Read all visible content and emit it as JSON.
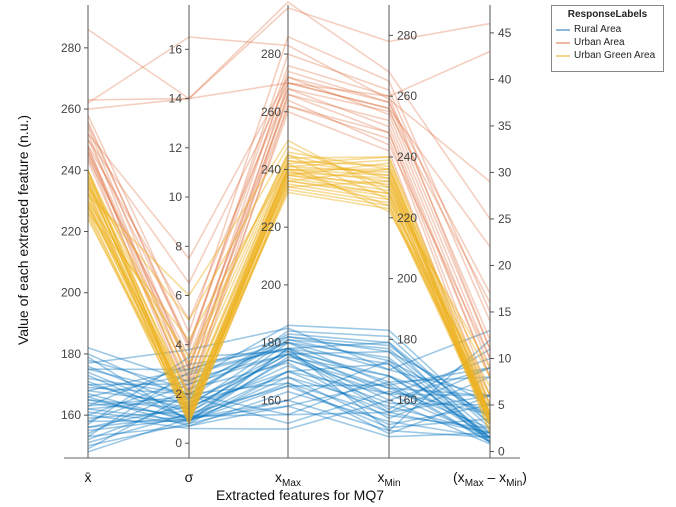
{
  "chart_data": {
    "type": "parallel-coordinates",
    "xlabel": "Extracted features for MQ7",
    "ylabel": "Value of each extracted feature (n.u.)",
    "axes": [
      {
        "id": "mean",
        "label": "x̄",
        "ticks": [
          160,
          180,
          200,
          220,
          240,
          260,
          280
        ],
        "range": [
          146,
          294
        ],
        "tick_side": "left"
      },
      {
        "id": "std",
        "label": "σ",
        "ticks": [
          0,
          2,
          4,
          6,
          8,
          10,
          12,
          14,
          16
        ],
        "range": [
          -0.6,
          17.8
        ],
        "tick_side": "left"
      },
      {
        "id": "xmax",
        "label": "x",
        "label_sub": "Max",
        "ticks": [
          160,
          180,
          200,
          220,
          240,
          260,
          280
        ],
        "range": [
          140,
          297
        ],
        "tick_side": "left"
      },
      {
        "id": "xmin",
        "label": "x",
        "label_sub": "Min",
        "ticks": [
          160,
          180,
          200,
          220,
          240,
          260,
          280
        ],
        "range": [
          141,
          290
        ],
        "tick_side": "right"
      },
      {
        "id": "range",
        "label": "(x",
        "label_sub": "Max",
        "label_mid": " – x",
        "label_sub2": "Min",
        "label_end": ")",
        "ticks": [
          0,
          5,
          10,
          15,
          20,
          25,
          30,
          35,
          40,
          45
        ],
        "range": [
          -0.7,
          48
        ],
        "tick_side": "right"
      }
    ],
    "legend": {
      "title": "ResponseLabels",
      "position": "top-right",
      "entries": [
        {
          "name": "Rural Area",
          "color": "#0072BD"
        },
        {
          "name": "Urban Area",
          "color": "#D95319"
        },
        {
          "name": "Urban Green Area",
          "color": "#EDB120"
        }
      ]
    },
    "series": [
      {
        "name": "Rural Area",
        "color": "#0072BD",
        "records": [
          [
            182,
            2.5,
            186,
            183,
            3
          ],
          [
            180,
            1.8,
            184,
            181,
            2.5
          ],
          [
            178,
            2.2,
            183,
            179,
            3
          ],
          [
            176,
            1.5,
            181,
            177,
            2
          ],
          [
            175,
            3.0,
            182,
            176,
            5
          ],
          [
            174,
            1.2,
            180,
            174,
            1.5
          ],
          [
            172,
            2.0,
            181,
            173,
            4
          ],
          [
            171,
            1.0,
            178,
            172,
            1.5
          ],
          [
            170,
            2.4,
            180,
            170,
            6
          ],
          [
            168,
            1.6,
            177,
            168,
            4
          ],
          [
            167,
            0.9,
            175,
            168,
            1.5
          ],
          [
            166,
            2.8,
            178,
            166,
            8
          ],
          [
            165,
            1.4,
            176,
            164,
            6
          ],
          [
            164,
            1.1,
            174,
            164,
            2.5
          ],
          [
            163,
            3.2,
            178,
            162,
            10
          ],
          [
            162,
            1.8,
            174,
            162,
            6
          ],
          [
            161,
            0.8,
            170,
            162,
            1.5
          ],
          [
            160,
            2.6,
            176,
            160,
            9
          ],
          [
            159,
            1.3,
            172,
            159,
            5
          ],
          [
            158,
            0.9,
            168,
            158,
            2
          ],
          [
            157,
            3.5,
            177,
            157,
            11
          ],
          [
            156,
            1.5,
            170,
            156,
            6
          ],
          [
            155,
            1.0,
            166,
            155,
            2.5
          ],
          [
            154,
            2.2,
            173,
            154,
            8
          ],
          [
            153,
            0.7,
            163,
            153,
            1.5
          ],
          [
            152,
            1.7,
            168,
            152,
            5
          ],
          [
            151,
            1.2,
            165,
            151,
            3.5
          ],
          [
            150,
            0.8,
            160,
            150,
            1.5
          ],
          [
            149,
            2.0,
            166,
            149,
            6
          ],
          [
            148,
            1.0,
            158,
            148,
            2
          ],
          [
            179,
            0.9,
            178,
            179,
            1
          ],
          [
            177,
            3.8,
            185,
            170,
            13
          ],
          [
            173,
            1.0,
            160,
            173,
            1
          ],
          [
            169,
            2.0,
            155,
            168,
            2
          ],
          [
            166,
            0.7,
            158,
            166,
            1
          ],
          [
            163,
            1.9,
            152,
            163,
            4
          ],
          [
            160,
            0.6,
            150,
            160,
            0.8
          ],
          [
            158,
            2.4,
            176,
            156,
            9
          ],
          [
            156,
            1.1,
            155,
            156,
            2
          ],
          [
            153,
            2.9,
            178,
            150,
            12
          ],
          [
            170,
            1.4,
            176,
            176,
            1.5
          ],
          [
            165,
            1.0,
            170,
            172,
            1.2
          ],
          [
            162,
            0.9,
            165,
            165,
            1
          ],
          [
            175,
            2.0,
            182,
            178,
            3.5
          ],
          [
            168,
            3.0,
            180,
            165,
            9
          ]
        ]
      },
      {
        "name": "Urban Area",
        "color": "#D95319",
        "records": [
          [
            286,
            14,
            296,
            278,
            46
          ],
          [
            263,
            14,
            270,
            260,
            43
          ],
          [
            262,
            16.5,
            283,
            259,
            29
          ],
          [
            260,
            14,
            298,
            268,
            25
          ],
          [
            258,
            4.5,
            286,
            265,
            15
          ],
          [
            256,
            3.8,
            280,
            262,
            14
          ],
          [
            254,
            3.0,
            274,
            258,
            12
          ],
          [
            252,
            2.5,
            270,
            256,
            11
          ],
          [
            250,
            4.0,
            272,
            254,
            10
          ],
          [
            248,
            2.0,
            266,
            252,
            9
          ],
          [
            247,
            3.2,
            268,
            250,
            8
          ],
          [
            246,
            2.6,
            266,
            248,
            6
          ],
          [
            245,
            1.8,
            262,
            246,
            5
          ],
          [
            244,
            3.5,
            264,
            244,
            10
          ],
          [
            243,
            2.2,
            260,
            242,
            4
          ],
          [
            250,
            6.5,
            270,
            256,
            22
          ],
          [
            252,
            7.5,
            272,
            258,
            17
          ],
          [
            248,
            5.0,
            268,
            255,
            16
          ],
          [
            255,
            4.0,
            276,
            260,
            11
          ],
          [
            246,
            3.0,
            262,
            248,
            8
          ]
        ]
      },
      {
        "name": "Urban Green Area",
        "color": "#EDB120",
        "records": [
          [
            240,
            1.5,
            242,
            240,
            4
          ],
          [
            239,
            1.2,
            241,
            239,
            3
          ],
          [
            238,
            1.8,
            243,
            237,
            4.5
          ],
          [
            237,
            1.0,
            240,
            236,
            3.5
          ],
          [
            236,
            1.4,
            241,
            235,
            4
          ],
          [
            235,
            1.6,
            240,
            234,
            3
          ],
          [
            234,
            1.1,
            239,
            233,
            3.5
          ],
          [
            233,
            1.3,
            240,
            232,
            4
          ],
          [
            232,
            0.9,
            238,
            231,
            3
          ],
          [
            231,
            1.5,
            239,
            230,
            4
          ],
          [
            230,
            1.2,
            238,
            229,
            3.5
          ],
          [
            229,
            1.0,
            237,
            228,
            3
          ],
          [
            228,
            1.4,
            236,
            227,
            4
          ],
          [
            227,
            0.8,
            235,
            226,
            3
          ],
          [
            226,
            1.1,
            234,
            225,
            3.5
          ],
          [
            225,
            0.9,
            233,
            224,
            3
          ],
          [
            224,
            1.3,
            232,
            223,
            4
          ],
          [
            240,
            2.4,
            244,
            240,
            5
          ],
          [
            238,
            3.2,
            246,
            236,
            6
          ],
          [
            236,
            2.8,
            245,
            233,
            5
          ],
          [
            234,
            5.0,
            248,
            230,
            8
          ],
          [
            232,
            6.0,
            250,
            228,
            9
          ],
          [
            230,
            3.5,
            245,
            226,
            6
          ],
          [
            228,
            2.0,
            240,
            224,
            4
          ],
          [
            226,
            4.2,
            242,
            222,
            7
          ],
          [
            237,
            1.2,
            236,
            236,
            2.5
          ],
          [
            233,
            0.8,
            234,
            232,
            2
          ],
          [
            229,
            1.6,
            236,
            228,
            3
          ],
          [
            240,
            1.0,
            238,
            238,
            2
          ],
          [
            235,
            2.0,
            243,
            234,
            4
          ]
        ]
      }
    ]
  }
}
